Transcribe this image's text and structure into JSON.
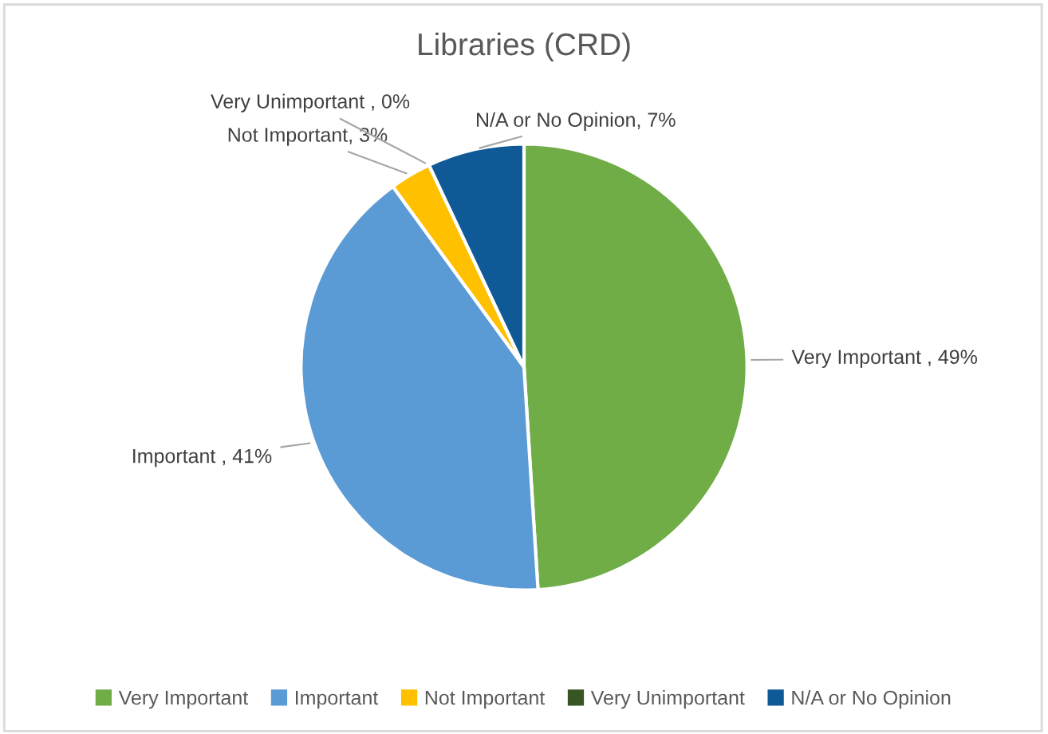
{
  "chart_data": {
    "type": "pie",
    "title": "Libraries (CRD)",
    "categories": [
      "Very Important",
      "Important",
      "Not Important",
      "Very Unimportant",
      "N/A or No Opinion"
    ],
    "values": [
      49,
      41,
      3,
      0,
      7
    ],
    "colors": [
      "#70ad47",
      "#5b9bd5",
      "#ffc000",
      "#375623",
      "#0f5a96"
    ],
    "value_labels": [
      "Very Important , 49%",
      "Important , 41%",
      "Not Important, 3%",
      "Very Unimportant , 0%",
      "N/A or No Opinion, 7%"
    ],
    "legend": "bottom"
  }
}
